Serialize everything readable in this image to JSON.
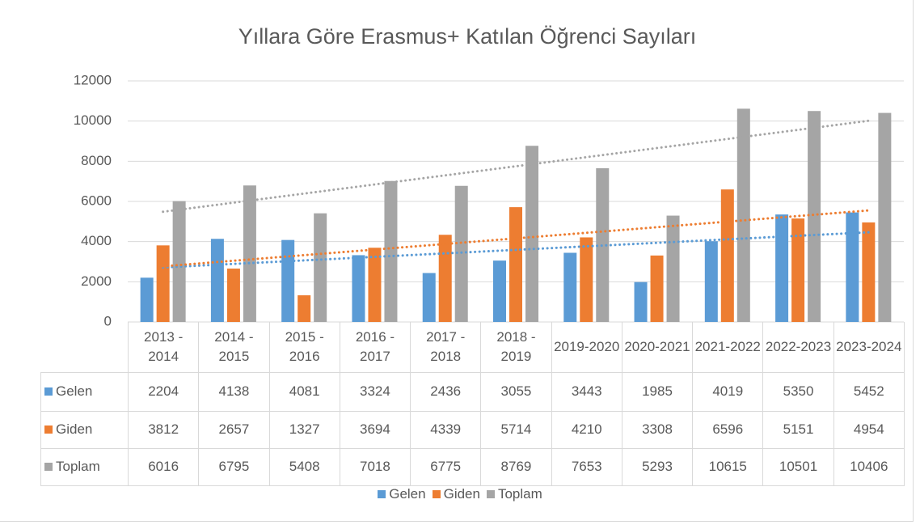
{
  "chart_data": {
    "type": "bar",
    "title": "Yıllara Göre Erasmus+ Katılan Öğrenci Sayıları",
    "categories": [
      "2013 - 2014",
      "2014 - 2015",
      "2015 - 2016",
      "2016 - 2017",
      "2017 - 2018",
      "2018 - 2019",
      "2019-2020",
      "2020-2021",
      "2021-2022",
      "2022-2023",
      "2023-2024"
    ],
    "series": [
      {
        "name": "Gelen",
        "color": "#5b9bd5",
        "trendline": "linear",
        "values": [
          2204,
          4138,
          4081,
          3324,
          2436,
          3055,
          3443,
          1985,
          4019,
          5350,
          5452
        ]
      },
      {
        "name": "Giden",
        "color": "#ed7d31",
        "trendline": "linear",
        "values": [
          3812,
          2657,
          1327,
          3694,
          4339,
          5714,
          4210,
          3308,
          6596,
          5151,
          4954
        ]
      },
      {
        "name": "Toplam",
        "color": "#a5a5a5",
        "trendline": "linear",
        "values": [
          6016,
          6795,
          5408,
          7018,
          6775,
          8769,
          7653,
          5293,
          10615,
          10501,
          10406
        ]
      }
    ],
    "ylim": [
      0,
      12000
    ],
    "yticks": [
      0,
      2000,
      4000,
      6000,
      8000,
      10000,
      12000
    ],
    "grid": true,
    "data_table": true,
    "legend": "bottom"
  }
}
